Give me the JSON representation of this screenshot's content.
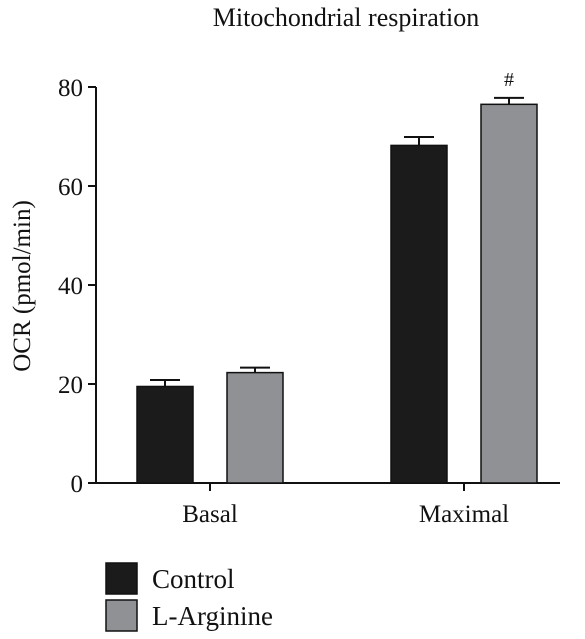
{
  "chart_data": {
    "type": "bar",
    "title": "Mitochondrial respiration",
    "ylabel": "OCR (pmol/min)",
    "xlabel": "",
    "categories": [
      "Basal",
      "Maximal"
    ],
    "ylim": [
      0,
      80
    ],
    "yticks": [
      0,
      20,
      40,
      60,
      80
    ],
    "grid": false,
    "legend_position": "bottom-left",
    "series": [
      {
        "name": "Control",
        "color": "#1b1b1b",
        "values": [
          19.5,
          68.2
        ],
        "errors": [
          1.3,
          1.7
        ],
        "annotations": [
          "",
          ""
        ]
      },
      {
        "name": "L-Arginine",
        "color": "#8f9194",
        "values": [
          22.3,
          76.5
        ],
        "errors": [
          1.0,
          1.3
        ],
        "annotations": [
          "",
          "#"
        ]
      }
    ]
  }
}
